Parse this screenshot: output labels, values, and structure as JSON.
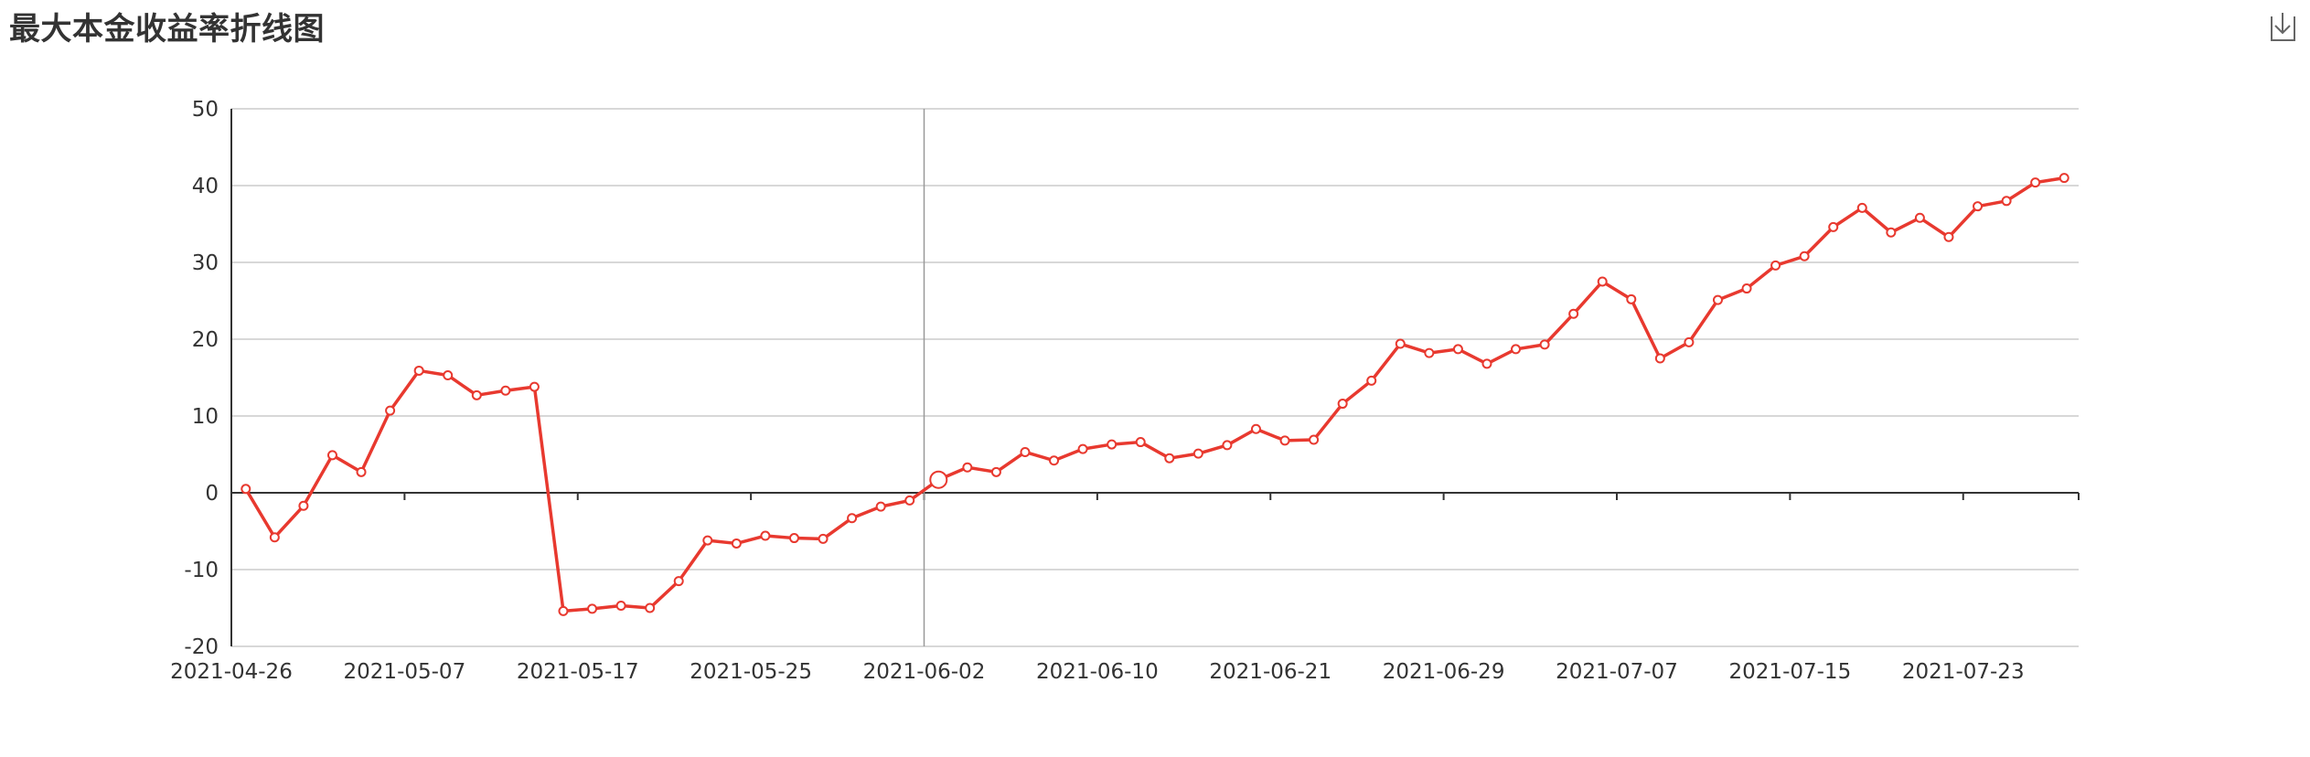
{
  "title": "最大本金收益率折线图",
  "toolbox": {
    "download_icon": "download-icon"
  },
  "colors": {
    "line": "#e8392f",
    "grid": "#cccccc",
    "axis": "#333333",
    "text": "#333333",
    "pointer": "#999999",
    "background": "#ffffff"
  },
  "chart_data": {
    "type": "line",
    "title": "最大本金收益率折线图",
    "xlabel": "",
    "ylabel": "",
    "ylim": [
      -20,
      50
    ],
    "yticks": [
      50,
      40,
      30,
      20,
      10,
      0,
      -10,
      -20
    ],
    "grid": "horizontal",
    "legend": "none",
    "highlight_index": 24,
    "x_tick_labels": [
      "2021-04-26",
      "2021-05-07",
      "2021-05-17",
      "2021-05-25",
      "2021-06-02",
      "2021-06-10",
      "2021-06-21",
      "2021-06-29",
      "2021-07-07",
      "2021-07-15",
      "2021-07-23"
    ],
    "x_tick_label_indices": [
      0,
      6,
      12,
      18,
      24,
      30,
      36,
      42,
      48,
      54,
      60
    ],
    "series": [
      {
        "values": [
          0.5,
          -5.8,
          -1.7,
          4.9,
          2.7,
          10.7,
          15.9,
          15.3,
          12.7,
          13.3,
          13.8,
          -15.4,
          -15.1,
          -14.7,
          -15.0,
          -11.5,
          -6.2,
          -6.6,
          -5.6,
          -5.9,
          -6.0,
          -3.3,
          -1.8,
          -1.0,
          1.7,
          3.3,
          2.7,
          5.3,
          4.2,
          5.7,
          6.3,
          6.6,
          4.5,
          5.1,
          6.2,
          8.3,
          6.8,
          6.9,
          11.6,
          14.6,
          19.4,
          18.2,
          18.7,
          16.8,
          18.7,
          19.3,
          23.3,
          27.5,
          25.2,
          17.5,
          19.6,
          25.1,
          26.6,
          29.6,
          30.8,
          34.6,
          37.1,
          33.9,
          35.8,
          33.3,
          37.3,
          38.0,
          40.4,
          41.0
        ]
      }
    ]
  }
}
